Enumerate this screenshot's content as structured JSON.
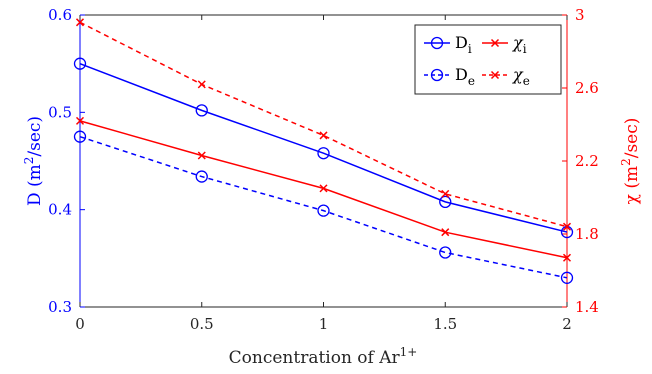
{
  "chart_data": {
    "type": "line",
    "x": [
      0,
      0.5,
      1,
      1.5,
      2
    ],
    "x_tick_labels": [
      "0",
      "0.5",
      "1",
      "1.5",
      "2"
    ],
    "xlim": [
      0,
      2
    ],
    "xlabel": "Concentration of Ar",
    "xlabel_sup": "1+",
    "left_axis": {
      "label_prefix": "D (m",
      "label_sup": "2",
      "label_suffix": "/sec)",
      "ylim": [
        0.3,
        0.6
      ],
      "ticks": [
        0.3,
        0.4,
        0.5,
        0.6
      ],
      "tick_labels": [
        "0.3",
        "0.4",
        "0.5",
        "0.6"
      ],
      "color": "#0000ff"
    },
    "right_axis": {
      "label_prefix": "χ (m",
      "label_sup": "2",
      "label_suffix": "/sec)",
      "ylim": [
        1.4,
        3.0
      ],
      "ticks": [
        1.4,
        1.8,
        2.2,
        2.6,
        3.0
      ],
      "tick_labels": [
        "1.4",
        "1.8",
        "2.2",
        "2.6",
        "3"
      ],
      "color": "#ff0000"
    },
    "series": [
      {
        "name": "D",
        "sub": "i",
        "axis": "left",
        "color": "#0000ff",
        "line": "solid",
        "marker": "circle",
        "values": [
          0.55,
          0.502,
          0.458,
          0.408,
          0.377
        ]
      },
      {
        "name": "D",
        "sub": "e",
        "axis": "left",
        "color": "#0000ff",
        "line": "dashed",
        "marker": "circle",
        "values": [
          0.475,
          0.434,
          0.399,
          0.356,
          0.33
        ]
      },
      {
        "name": "χ",
        "sub": "i",
        "axis": "right",
        "color": "#ff0000",
        "line": "solid",
        "marker": "x",
        "values": [
          2.42,
          2.23,
          2.05,
          1.81,
          1.67
        ]
      },
      {
        "name": "χ",
        "sub": "e",
        "axis": "right",
        "color": "#ff0000",
        "line": "dashed",
        "marker": "x",
        "values": [
          2.96,
          2.62,
          2.34,
          2.02,
          1.84
        ]
      }
    ],
    "legend": {
      "placement": "top-right",
      "columns": 2
    },
    "grid": false
  }
}
